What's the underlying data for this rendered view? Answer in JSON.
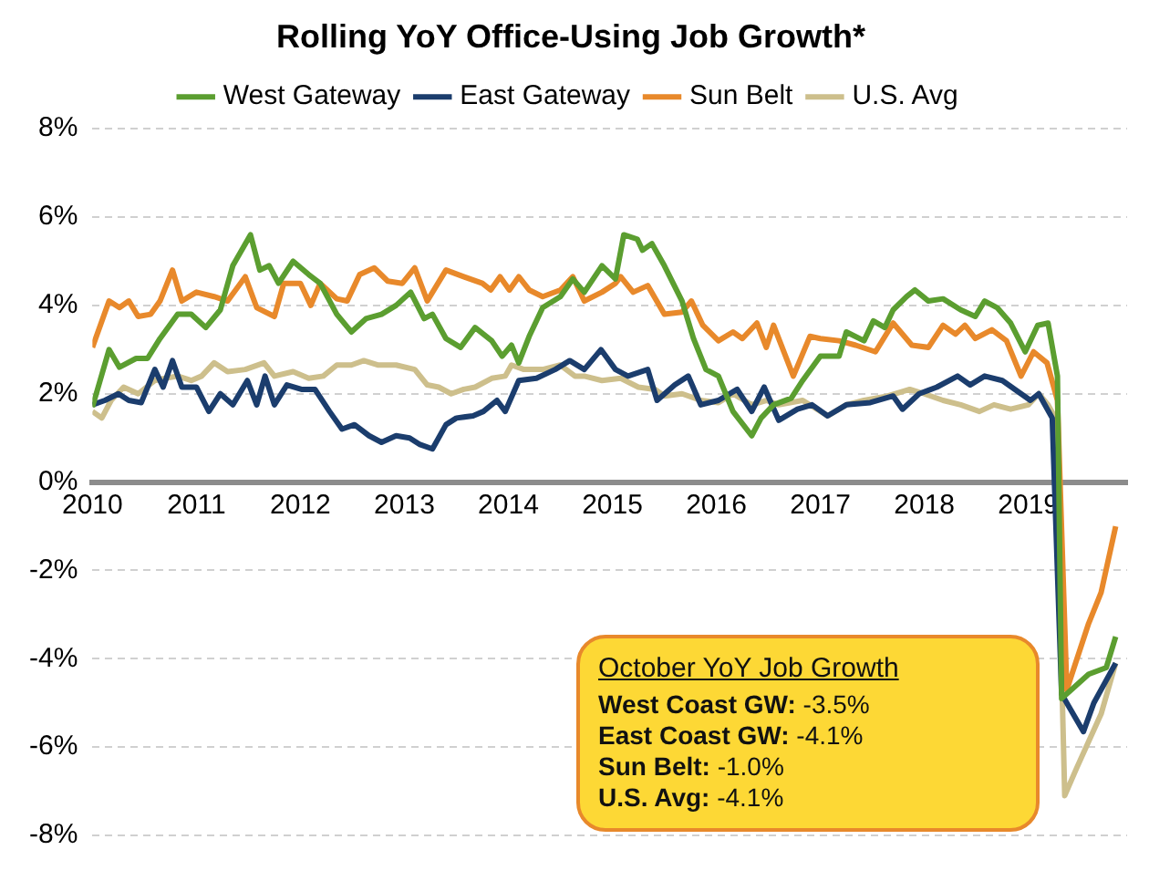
{
  "chart_data": {
    "type": "line",
    "title": "Rolling YoY Office-Using Job Growth*",
    "series": [
      {
        "name": "West Gateway",
        "color": "#5b9e30",
        "x": [
          2010.0,
          2010.16,
          2010.26,
          2010.42,
          2010.53,
          2010.65,
          2010.82,
          2010.95,
          2011.09,
          2011.23,
          2011.35,
          2011.52,
          2011.61,
          2011.7,
          2011.79,
          2011.93,
          2012.08,
          2012.19,
          2012.35,
          2012.49,
          2012.63,
          2012.78,
          2012.92,
          2013.06,
          2013.19,
          2013.27,
          2013.4,
          2013.54,
          2013.68,
          2013.84,
          2013.94,
          2014.03,
          2014.1,
          2014.2,
          2014.33,
          2014.5,
          2014.62,
          2014.73,
          2014.9,
          2015.03,
          2015.11,
          2015.24,
          2015.29,
          2015.38,
          2015.5,
          2015.67,
          2015.78,
          2015.9,
          2016.02,
          2016.16,
          2016.34,
          2016.43,
          2016.55,
          2016.72,
          2016.83,
          2017.0,
          2017.18,
          2017.25,
          2017.42,
          2017.51,
          2017.62,
          2017.7,
          2017.83,
          2017.91,
          2018.04,
          2018.18,
          2018.35,
          2018.49,
          2018.58,
          2018.7,
          2018.83,
          2018.97,
          2019.09,
          2019.19,
          2019.28,
          2019.32,
          2019.58,
          2019.75,
          2019.84
        ],
        "values": [
          1.7,
          3.0,
          2.6,
          2.8,
          2.8,
          3.25,
          3.8,
          3.8,
          3.5,
          3.9,
          4.9,
          5.6,
          4.8,
          4.9,
          4.5,
          5.0,
          4.7,
          4.5,
          3.8,
          3.4,
          3.7,
          3.8,
          4.0,
          4.3,
          3.7,
          3.8,
          3.25,
          3.05,
          3.5,
          3.2,
          2.85,
          3.1,
          2.7,
          3.3,
          3.95,
          4.2,
          4.6,
          4.3,
          4.9,
          4.6,
          5.6,
          5.5,
          5.25,
          5.4,
          4.9,
          4.1,
          3.25,
          2.55,
          2.4,
          1.6,
          1.05,
          1.45,
          1.75,
          1.9,
          2.3,
          2.85,
          2.85,
          3.4,
          3.2,
          3.65,
          3.5,
          3.9,
          4.2,
          4.35,
          4.1,
          4.15,
          3.9,
          3.75,
          4.1,
          3.95,
          3.6,
          2.95,
          3.55,
          3.6,
          2.4,
          -4.9,
          -4.35,
          -4.2,
          -3.5
        ]
      },
      {
        "name": "East Gateway",
        "color": "#1b3d6d",
        "x": [
          2010.0,
          2010.12,
          2010.25,
          2010.35,
          2010.47,
          2010.6,
          2010.68,
          2010.77,
          2010.86,
          2011.0,
          2011.12,
          2011.23,
          2011.35,
          2011.49,
          2011.58,
          2011.66,
          2011.75,
          2011.87,
          2012.01,
          2012.14,
          2012.28,
          2012.4,
          2012.52,
          2012.66,
          2012.78,
          2012.92,
          2013.05,
          2013.15,
          2013.27,
          2013.4,
          2013.5,
          2013.66,
          2013.76,
          2013.89,
          2013.97,
          2014.1,
          2014.27,
          2014.45,
          2014.59,
          2014.73,
          2014.89,
          2015.03,
          2015.15,
          2015.34,
          2015.43,
          2015.6,
          2015.73,
          2015.85,
          2016.02,
          2016.2,
          2016.34,
          2016.46,
          2016.6,
          2016.78,
          2016.92,
          2017.07,
          2017.25,
          2017.48,
          2017.7,
          2017.79,
          2017.95,
          2018.12,
          2018.32,
          2018.44,
          2018.58,
          2018.75,
          2018.93,
          2019.02,
          2019.1,
          2019.23,
          2019.32,
          2019.53,
          2019.63,
          2019.84
        ],
        "values": [
          1.75,
          1.85,
          2.0,
          1.85,
          1.8,
          2.55,
          2.15,
          2.75,
          2.15,
          2.15,
          1.6,
          2.0,
          1.75,
          2.3,
          1.75,
          2.4,
          1.75,
          2.2,
          2.1,
          2.1,
          1.6,
          1.2,
          1.3,
          1.05,
          0.9,
          1.05,
          1.0,
          0.85,
          0.75,
          1.3,
          1.45,
          1.5,
          1.6,
          1.85,
          1.6,
          2.3,
          2.35,
          2.55,
          2.75,
          2.55,
          3.0,
          2.55,
          2.4,
          2.55,
          1.85,
          2.2,
          2.4,
          1.75,
          1.85,
          2.1,
          1.6,
          2.15,
          1.4,
          1.65,
          1.75,
          1.5,
          1.75,
          1.8,
          1.95,
          1.65,
          2.0,
          2.15,
          2.4,
          2.2,
          2.4,
          2.3,
          2.0,
          1.85,
          2.0,
          1.45,
          -4.8,
          -5.65,
          -5.0,
          -4.1
        ]
      },
      {
        "name": "Sun Belt",
        "color": "#e8892b",
        "x": [
          2010.0,
          2010.16,
          2010.26,
          2010.35,
          2010.44,
          2010.56,
          2010.65,
          2010.77,
          2010.86,
          2011.0,
          2011.17,
          2011.3,
          2011.47,
          2011.58,
          2011.75,
          2011.84,
          2012.0,
          2012.1,
          2012.19,
          2012.35,
          2012.45,
          2012.57,
          2012.71,
          2012.84,
          2012.98,
          2013.1,
          2013.22,
          2013.4,
          2013.57,
          2013.75,
          2013.83,
          2013.92,
          2014.01,
          2014.1,
          2014.2,
          2014.33,
          2014.5,
          2014.62,
          2014.73,
          2014.9,
          2015.03,
          2015.08,
          2015.2,
          2015.34,
          2015.5,
          2015.67,
          2015.76,
          2015.87,
          2016.02,
          2016.16,
          2016.25,
          2016.39,
          2016.48,
          2016.55,
          2016.74,
          2016.9,
          2017.0,
          2017.18,
          2017.34,
          2017.53,
          2017.7,
          2017.88,
          2018.04,
          2018.18,
          2018.3,
          2018.39,
          2018.49,
          2018.65,
          2018.79,
          2018.93,
          2019.05,
          2019.18,
          2019.28,
          2019.37,
          2019.58,
          2019.7,
          2019.84
        ],
        "values": [
          3.05,
          4.1,
          3.95,
          4.1,
          3.75,
          3.8,
          4.1,
          4.8,
          4.1,
          4.3,
          4.2,
          4.1,
          4.65,
          3.95,
          3.75,
          4.5,
          4.5,
          4.0,
          4.5,
          4.15,
          4.1,
          4.7,
          4.85,
          4.55,
          4.5,
          4.85,
          4.1,
          4.8,
          4.65,
          4.5,
          4.35,
          4.65,
          4.35,
          4.65,
          4.35,
          4.2,
          4.35,
          4.65,
          4.1,
          4.3,
          4.5,
          4.65,
          4.3,
          4.45,
          3.8,
          3.85,
          4.1,
          3.55,
          3.2,
          3.4,
          3.25,
          3.6,
          3.05,
          3.55,
          2.4,
          3.3,
          3.25,
          3.2,
          3.1,
          2.95,
          3.6,
          3.1,
          3.05,
          3.55,
          3.35,
          3.55,
          3.25,
          3.45,
          3.2,
          2.4,
          2.95,
          2.7,
          1.85,
          -4.7,
          -3.2,
          -2.5,
          -1.0
        ]
      },
      {
        "name": "U.S. Avg",
        "color": "#cdbf8c",
        "x": [
          2010.0,
          2010.09,
          2010.18,
          2010.3,
          2010.44,
          2010.6,
          2010.7,
          2010.82,
          2010.95,
          2011.05,
          2011.17,
          2011.3,
          2011.47,
          2011.65,
          2011.75,
          2011.93,
          2012.08,
          2012.22,
          2012.35,
          2012.49,
          2012.61,
          2012.75,
          2012.92,
          2013.1,
          2013.22,
          2013.33,
          2013.45,
          2013.57,
          2013.68,
          2013.84,
          2013.97,
          2014.03,
          2014.15,
          2014.33,
          2014.5,
          2014.64,
          2014.73,
          2014.9,
          2015.08,
          2015.25,
          2015.41,
          2015.5,
          2015.67,
          2015.85,
          2016.02,
          2016.16,
          2016.34,
          2016.48,
          2016.6,
          2016.83,
          2017.07,
          2017.25,
          2017.42,
          2017.65,
          2017.86,
          2018.0,
          2018.18,
          2018.35,
          2018.53,
          2018.67,
          2018.83,
          2019.0,
          2019.1,
          2019.19,
          2019.26,
          2019.35,
          2019.46,
          2019.7,
          2019.84
        ],
        "values": [
          1.6,
          1.45,
          1.85,
          2.15,
          2.0,
          2.3,
          2.35,
          2.4,
          2.3,
          2.4,
          2.7,
          2.5,
          2.55,
          2.7,
          2.4,
          2.5,
          2.35,
          2.4,
          2.65,
          2.65,
          2.75,
          2.65,
          2.65,
          2.55,
          2.2,
          2.15,
          2.0,
          2.1,
          2.15,
          2.35,
          2.4,
          2.65,
          2.55,
          2.55,
          2.65,
          2.4,
          2.4,
          2.3,
          2.35,
          2.15,
          2.1,
          1.95,
          2.0,
          1.85,
          1.8,
          2.0,
          1.75,
          1.85,
          1.75,
          1.85,
          1.5,
          1.75,
          1.85,
          1.95,
          2.1,
          2.0,
          1.85,
          1.75,
          1.6,
          1.75,
          1.65,
          1.75,
          2.0,
          1.75,
          1.45,
          -7.1,
          -6.5,
          -5.25,
          -4.1
        ]
      }
    ],
    "xlim": [
      2010,
      2019.95
    ],
    "xticks": [
      2010,
      2011,
      2012,
      2013,
      2014,
      2015,
      2016,
      2017,
      2018,
      2019
    ],
    "ylim": [
      -8,
      8
    ],
    "yticks": [
      {
        "value": -8,
        "label": "-8%"
      },
      {
        "value": -6,
        "label": "-6%"
      },
      {
        "value": -4,
        "label": "-4%"
      },
      {
        "value": -2,
        "label": "-2%"
      },
      {
        "value": 0,
        "label": "0%"
      },
      {
        "value": 2,
        "label": "2%"
      },
      {
        "value": 4,
        "label": "4%"
      },
      {
        "value": 6,
        "label": "6%"
      },
      {
        "value": 8,
        "label": "8%"
      }
    ],
    "grid": "y",
    "legend": "top",
    "annotations": [
      "October YoY Job Growth",
      "West Coast GW: -3.5%",
      "East Coast GW: -4.1%",
      "Sun Belt: -1.0%",
      "U.S. Avg: -4.1%"
    ]
  }
}
